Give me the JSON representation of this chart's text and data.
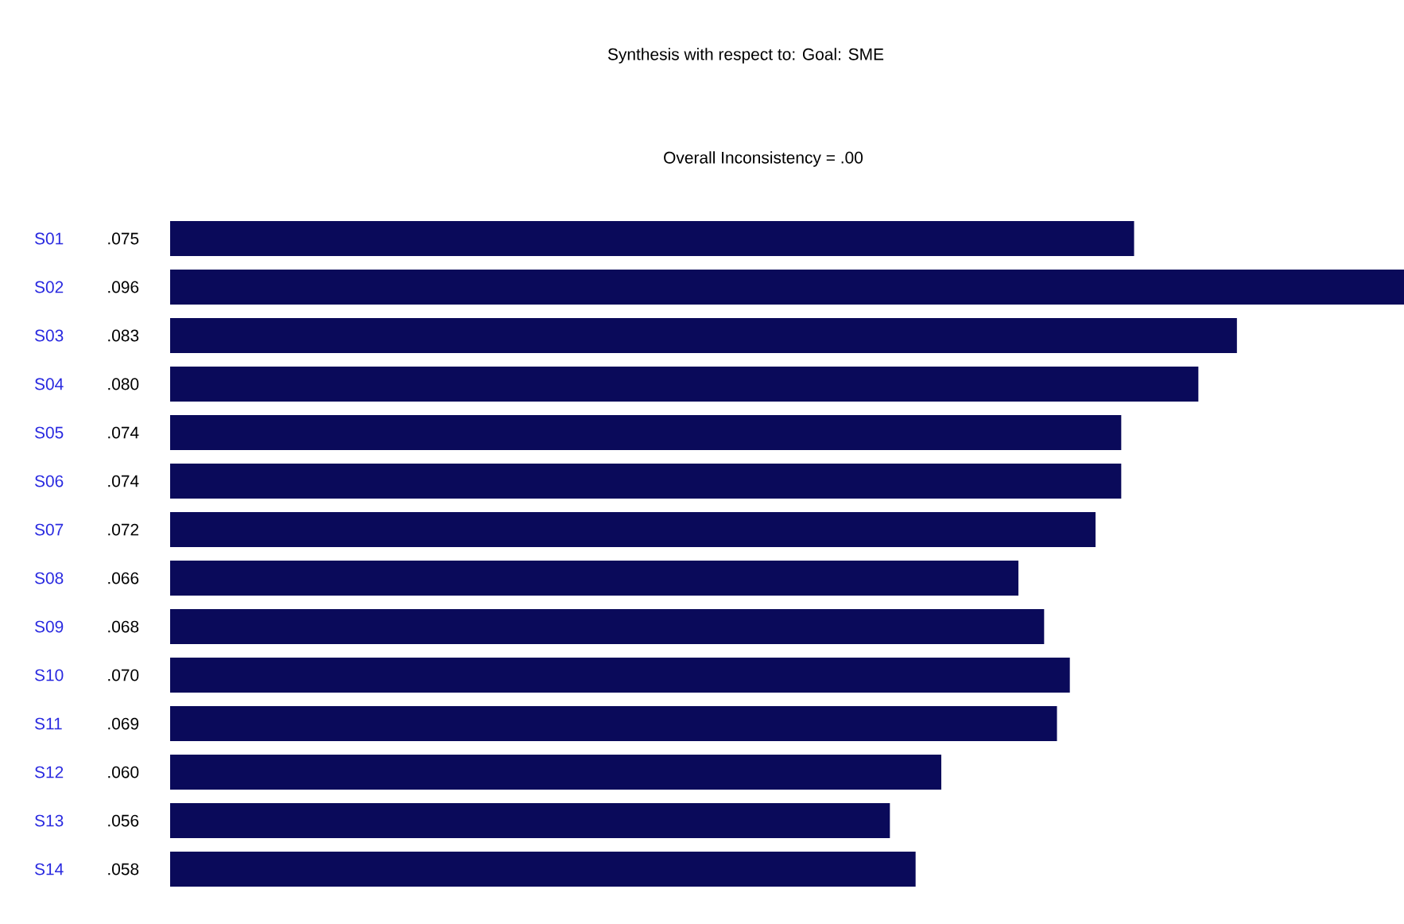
{
  "chart_data": {
    "type": "bar",
    "orientation": "horizontal",
    "title": "Synthesis with respect to: Goal: SME",
    "subtitle": "Overall Inconsistency = .00",
    "categories": [
      "S01",
      "S02",
      "S03",
      "S04",
      "S05",
      "S06",
      "S07",
      "S08",
      "S09",
      "S10",
      "S11",
      "S12",
      "S13",
      "S14"
    ],
    "values": [
      0.075,
      0.096,
      0.083,
      0.08,
      0.074,
      0.074,
      0.072,
      0.066,
      0.068,
      0.07,
      0.069,
      0.06,
      0.056,
      0.058
    ],
    "value_labels": [
      ".075",
      ".096",
      ".083",
      ".080",
      ".074",
      ".074",
      ".072",
      ".066",
      ".068",
      ".070",
      ".069",
      ".060",
      ".056",
      ".058"
    ],
    "color": "#0a0a5a"
  }
}
